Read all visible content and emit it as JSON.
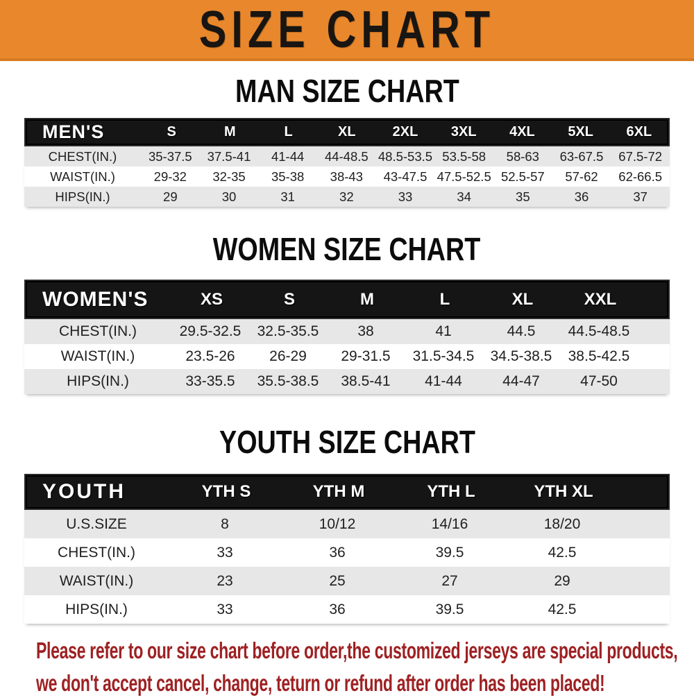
{
  "banner": {
    "title": "SIZE CHART"
  },
  "colors": {
    "banner_bg": "#e8872c",
    "bar_bg": "#151515",
    "stripe": "#e7e7e7",
    "notice_text": "#9e2123"
  },
  "sections": [
    {
      "kind": "men",
      "title": "MAN SIZE CHART",
      "header_label": "MEN'S",
      "columns": [
        "S",
        "M",
        "L",
        "XL",
        "2XL",
        "3XL",
        "4XL",
        "5XL",
        "6XL"
      ],
      "rows": [
        {
          "label": "CHEST(IN.)",
          "values": [
            "35-37.5",
            "37.5-41",
            "41-44",
            "44-48.5",
            "48.5-53.5",
            "53.5-58",
            "58-63",
            "63-67.5",
            "67.5-72"
          ]
        },
        {
          "label": "WAIST(IN.)",
          "values": [
            "29-32",
            "32-35",
            "35-38",
            "38-43",
            "43-47.5",
            "47.5-52.5",
            "52.5-57",
            "57-62",
            "62-66.5"
          ]
        },
        {
          "label": "HIPS(IN.)",
          "values": [
            "29",
            "30",
            "31",
            "32",
            "33",
            "34",
            "35",
            "36",
            "37"
          ]
        }
      ]
    },
    {
      "kind": "women",
      "title": "WOMEN SIZE CHART",
      "header_label": "WOMEN'S",
      "columns": [
        "XS",
        "S",
        "M",
        "L",
        "XL",
        "XXL"
      ],
      "rows": [
        {
          "label": "CHEST(IN.)",
          "values": [
            "29.5-32.5",
            "32.5-35.5",
            "38",
            "41",
            "44.5",
            "44.5-48.5"
          ]
        },
        {
          "label": "WAIST(IN.)",
          "values": [
            "23.5-26",
            "26-29",
            "29-31.5",
            "31.5-34.5",
            "34.5-38.5",
            "38.5-42.5"
          ]
        },
        {
          "label": "HIPS(IN.)",
          "values": [
            "33-35.5",
            "35.5-38.5",
            "38.5-41",
            "41-44",
            "44-47",
            "47-50"
          ]
        }
      ]
    },
    {
      "kind": "youth",
      "title": "YOUTH SIZE CHART",
      "header_label": "YOUTH",
      "columns": [
        "YTH S",
        "YTH M",
        "YTH L",
        "YTH XL"
      ],
      "rows": [
        {
          "label": "U.S.SIZE",
          "values": [
            "8",
            "10/12",
            "14/16",
            "18/20"
          ]
        },
        {
          "label": "CHEST(IN.)",
          "values": [
            "33",
            "36",
            "39.5",
            "42.5"
          ]
        },
        {
          "label": "WAIST(IN.)",
          "values": [
            "23",
            "25",
            "27",
            "29"
          ]
        },
        {
          "label": "HIPS(IN.)",
          "values": [
            "33",
            "36",
            "39.5",
            "42.5"
          ]
        }
      ]
    }
  ],
  "footer": {
    "line1": "Please refer to our size chart before order,the customized jerseys are special products,",
    "line2": "we don't accept cancel, change, teturn or refund after order has been placed!"
  }
}
